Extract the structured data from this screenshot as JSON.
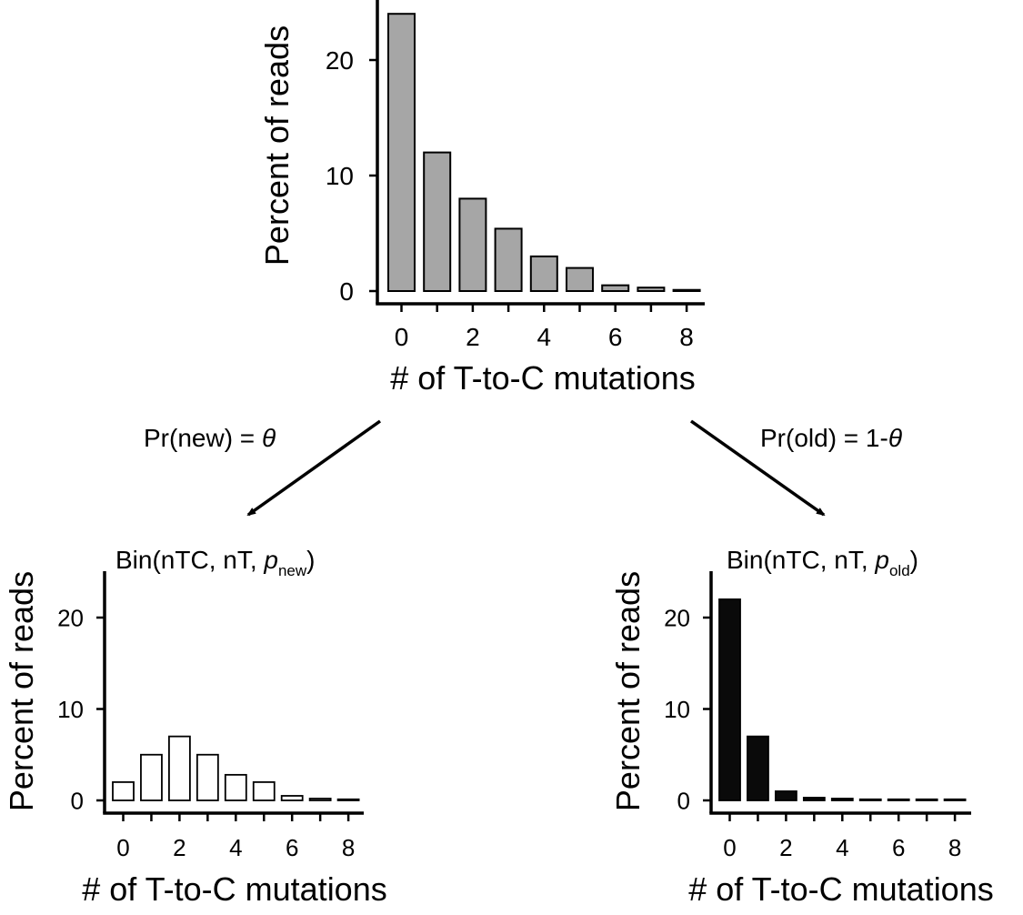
{
  "chart_data": [
    {
      "id": "top",
      "type": "bar",
      "title": "",
      "xlabel": "# of T-to-C mutations",
      "ylabel": "Percent of reads",
      "categories": [
        0,
        1,
        2,
        3,
        4,
        5,
        6,
        7,
        8
      ],
      "values": [
        24,
        12,
        8,
        5.4,
        3,
        2,
        0.5,
        0.3,
        0.1
      ],
      "xticks": [
        "0",
        "2",
        "4",
        "6",
        "8"
      ],
      "yticks": [
        "0",
        "10",
        "20"
      ],
      "ylim": [
        0,
        25
      ],
      "bar_color": "#a6a6a6"
    },
    {
      "id": "new",
      "type": "bar",
      "title": "Bin(nTC, nT, p_new)",
      "title_parts": {
        "prefix": "Bin(nTC, nT, ",
        "var": "p",
        "sub": "new",
        "suffix": ")"
      },
      "xlabel": "# of T-to-C mutations",
      "ylabel": "Percent of reads",
      "categories": [
        0,
        1,
        2,
        3,
        4,
        5,
        6,
        7,
        8
      ],
      "values": [
        2,
        5,
        7,
        5,
        2.8,
        2,
        0.5,
        0.2,
        0.1
      ],
      "xticks": [
        "0",
        "2",
        "4",
        "6",
        "8"
      ],
      "yticks": [
        "0",
        "10",
        "20"
      ],
      "ylim": [
        0,
        25
      ],
      "bar_color": "#ffffff"
    },
    {
      "id": "old",
      "type": "bar",
      "title": "Bin(nTC, nT, p_old)",
      "title_parts": {
        "prefix": "Bin(nTC, nT, ",
        "var": "p",
        "sub": "old",
        "suffix": ")"
      },
      "xlabel": "# of T-to-C mutations",
      "ylabel": "Percent of reads",
      "categories": [
        0,
        1,
        2,
        3,
        4,
        5,
        6,
        7,
        8
      ],
      "values": [
        22,
        7,
        1,
        0.3,
        0.2,
        0,
        0,
        0,
        0
      ],
      "xticks": [
        "0",
        "2",
        "4",
        "6",
        "8"
      ],
      "yticks": [
        "0",
        "10",
        "20"
      ],
      "ylim": [
        0,
        25
      ],
      "bar_color": "#0a0a0a"
    }
  ],
  "arrows": {
    "new_label_prefix": "Pr(new) = ",
    "new_label_symbol": "θ",
    "old_label_prefix": "Pr(old) = 1-",
    "old_label_symbol": "θ"
  },
  "colors": {
    "axis": "#000000",
    "bar_stroke": "#000000"
  }
}
